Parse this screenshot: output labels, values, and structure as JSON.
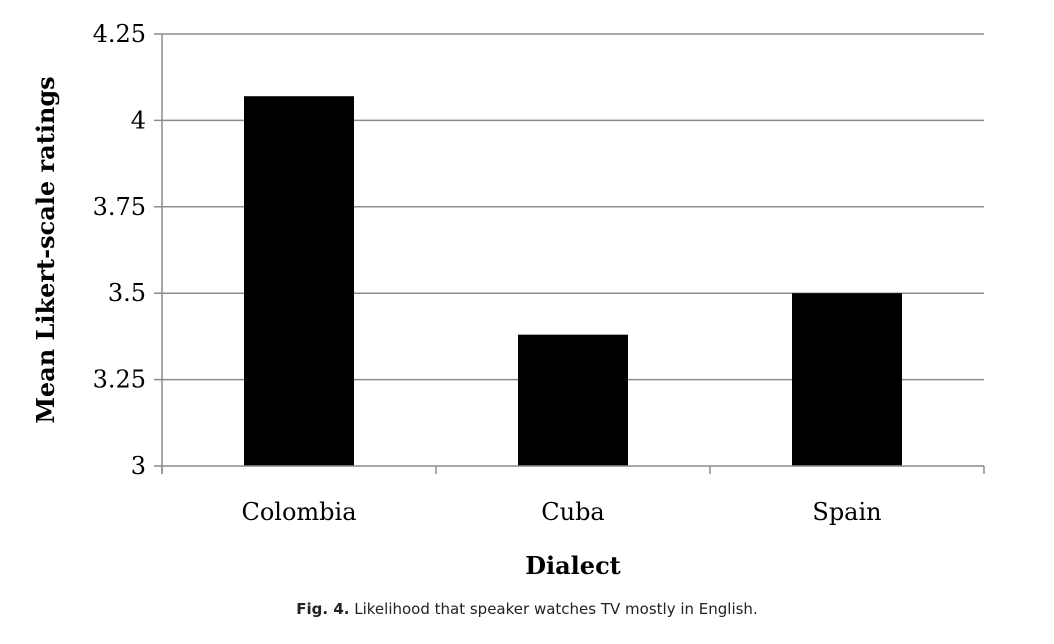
{
  "chart_data": {
    "type": "bar",
    "categories": [
      "Colombia",
      "Cuba",
      "Spain"
    ],
    "values": [
      4.07,
      3.38,
      3.5
    ],
    "title": "",
    "xlabel": "Dialect",
    "ylabel": "Mean Likert-scale ratings",
    "ylim": [
      3,
      4.25
    ],
    "yticks": [
      "3",
      "3.25",
      "3.5",
      "3.75",
      "4",
      "4.25"
    ],
    "ytick_values": [
      3,
      3.25,
      3.5,
      3.75,
      4,
      4.25
    ],
    "grid": true,
    "bar_color": "#000000",
    "grid_color": "#8c8c8c"
  },
  "caption": {
    "label": "Fig. 4.",
    "text": "Likelihood that speaker watches TV mostly in English."
  }
}
